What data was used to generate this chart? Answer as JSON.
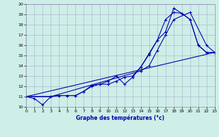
{
  "xlabel": "Graphe des températures (°c)",
  "background_color": "#ceeee8",
  "grid_color": "#a8aac8",
  "line_color": "#0000aa",
  "xlim": [
    0,
    23
  ],
  "ylim": [
    10,
    20
  ],
  "x_ticks": [
    0,
    1,
    2,
    3,
    4,
    5,
    6,
    7,
    8,
    9,
    10,
    11,
    12,
    13,
    14,
    15,
    16,
    17,
    18,
    19,
    20,
    21,
    22,
    23
  ],
  "y_ticks": [
    10,
    11,
    12,
    13,
    14,
    15,
    16,
    17,
    18,
    19,
    20
  ],
  "curve1_x": [
    0,
    1,
    2,
    3,
    4,
    5,
    6,
    7,
    8,
    9,
    10,
    11,
    12,
    13,
    14,
    15,
    16,
    17,
    18,
    19,
    20,
    21,
    22,
    23
  ],
  "curve1_y": [
    11.0,
    10.8,
    10.2,
    11.0,
    11.1,
    11.1,
    11.1,
    11.5,
    12.0,
    12.2,
    12.2,
    12.5,
    12.9,
    13.0,
    13.9,
    15.2,
    16.5,
    18.5,
    19.2,
    19.1,
    18.5,
    16.0,
    15.3,
    15.3
  ],
  "curve2_x": [
    0,
    3,
    4,
    5,
    6,
    7,
    8,
    9,
    10,
    11,
    12,
    13,
    14,
    15,
    16,
    17,
    18,
    19,
    20,
    21,
    22,
    23
  ],
  "curve2_y": [
    11.0,
    11.0,
    11.1,
    11.1,
    11.1,
    11.5,
    12.1,
    12.2,
    12.5,
    13.0,
    12.2,
    12.9,
    13.9,
    15.1,
    16.5,
    17.3,
    19.6,
    19.1,
    18.5,
    16.0,
    15.3,
    15.3
  ],
  "curve3_x": [
    0,
    3,
    14,
    15,
    16,
    17,
    18,
    20,
    22,
    23
  ],
  "curve3_y": [
    11.0,
    11.0,
    13.5,
    14.0,
    15.5,
    17.0,
    18.5,
    19.2,
    16.0,
    15.3
  ],
  "curve4_x": [
    0,
    23
  ],
  "curve4_y": [
    11.0,
    15.3
  ]
}
